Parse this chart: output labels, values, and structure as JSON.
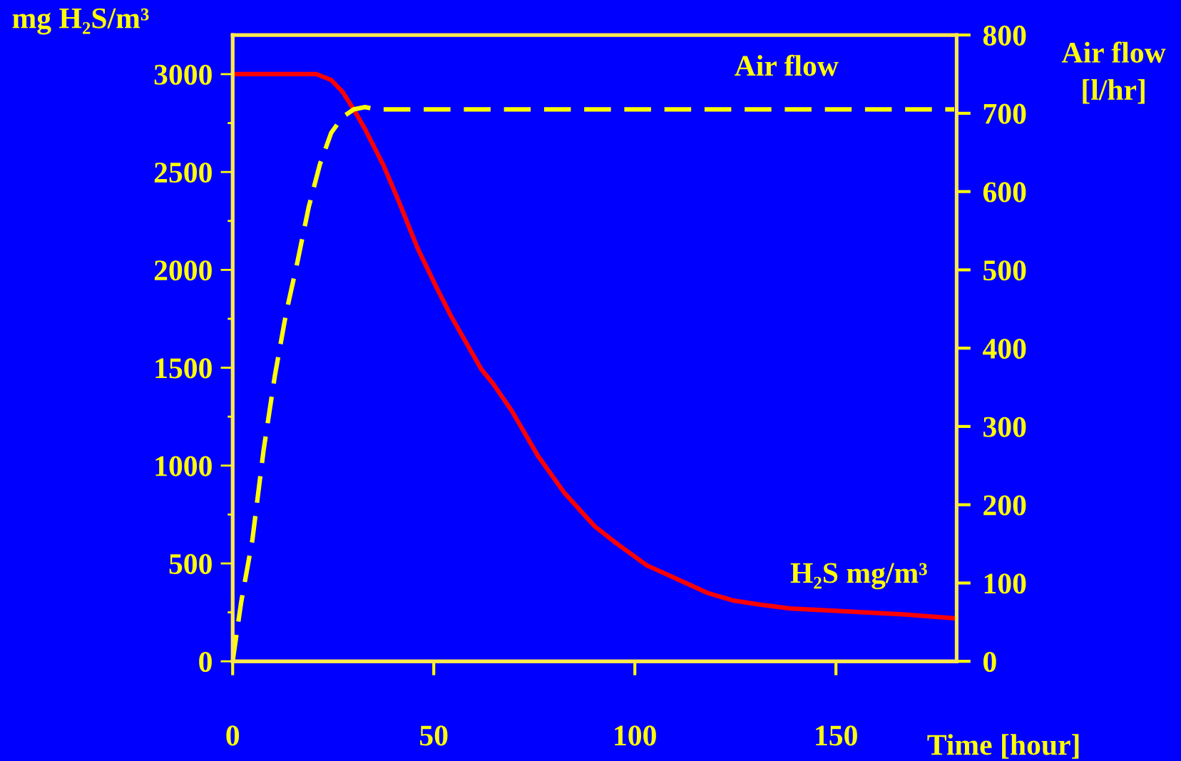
{
  "chart_data": {
    "type": "line",
    "xlabel": "Time [hour]",
    "ylabel": "mg H₂S/m³",
    "y2label": "Air flow\n[l/hr]",
    "xlim": [
      0,
      180
    ],
    "xticks": [
      0,
      50,
      100,
      150
    ],
    "ylim": [
      0,
      3200
    ],
    "yticks": [
      0,
      {
        "value": 250,
        "label": null
      },
      500,
      {
        "value": 750,
        "label": null
      },
      1000,
      {
        "value": 1250,
        "label": null
      },
      1500,
      {
        "value": 1750,
        "label": null
      },
      2000,
      {
        "value": 2250,
        "label": null
      },
      2500,
      {
        "value": 2750,
        "label": null
      },
      3000
    ],
    "y2lim": [
      0,
      800
    ],
    "y2ticks": [
      0,
      100,
      200,
      300,
      400,
      500,
      600,
      700,
      800
    ],
    "annotations": [
      "Air flow",
      "H₂S mg/m³"
    ],
    "grid": false,
    "marker": "none",
    "series": [
      {
        "color": "#ff0000",
        "line_style": "solid",
        "x": [
          0,
          20.8,
          24.5,
          27.3,
          30.1,
          32.9,
          37.6,
          41.3,
          46,
          50.7,
          54.4,
          61.9,
          64.7,
          69.4,
          75.9,
          82.5,
          90,
          95.6,
          103,
          110.5,
          118,
          124.6,
          131,
          138.6,
          148,
          157.3,
          166.6,
          179.4
        ],
        "values": [
          3000,
          3000,
          2970,
          2910,
          2820,
          2720,
          2530,
          2350,
          2110,
          1910,
          1760,
          1490,
          1420,
          1280,
          1050,
          860,
          690,
          600,
          490,
          420,
          350,
          310,
          290,
          270,
          260,
          250,
          240,
          220
        ]
      },
      {
        "color": "#ffff00",
        "line_style": "dashed",
        "axis": "y2",
        "x": [
          0,
          2.1,
          4.9,
          7.7,
          10.5,
          13.3,
          16.1,
          18.9,
          21.7,
          24.5,
          27.3,
          30.1,
          32.9,
          35.7,
          179.4
        ],
        "values": [
          0,
          75,
          155,
          270,
          365,
          445,
          510,
          580,
          635,
          675,
          695,
          705,
          708,
          705,
          705
        ]
      }
    ]
  }
}
